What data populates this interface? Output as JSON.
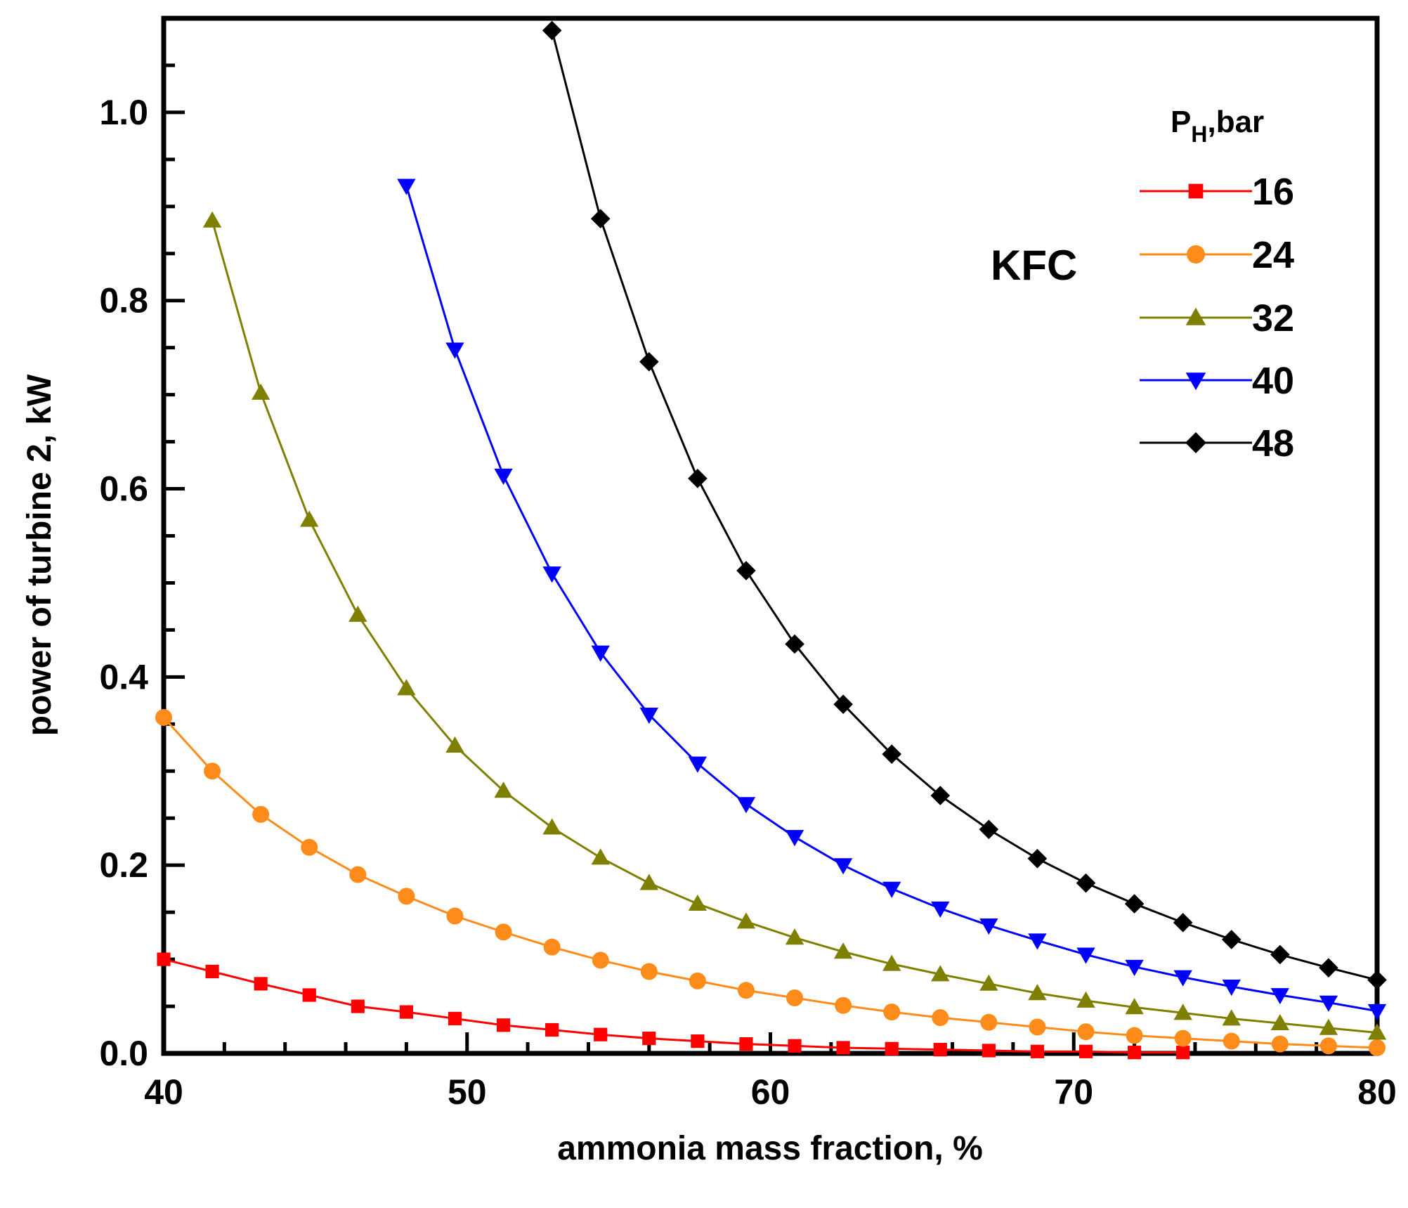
{
  "chart_data": {
    "type": "line",
    "title": "",
    "xlabel": "ammonia mass fraction, %",
    "ylabel": "power of turbine 2, kW",
    "xlim": [
      40,
      80
    ],
    "ylim": [
      0.0,
      1.1
    ],
    "xticks": [
      40,
      50,
      60,
      70,
      80
    ],
    "xtick_labels": [
      "40",
      "50",
      "60",
      "70",
      "80"
    ],
    "yticks": [
      0.0,
      0.2,
      0.4,
      0.6,
      0.8,
      1.0
    ],
    "ytick_labels": [
      "0.0",
      "0.2",
      "0.4",
      "0.6",
      "0.8",
      "1.0"
    ],
    "annotation": "KFC",
    "legend": {
      "title_main": "P",
      "title_sub": "H",
      "title_rest": ",bar",
      "placement": "top-right"
    },
    "series": [
      {
        "name": "16",
        "color": "#ff0000",
        "marker": "square",
        "x": [
          40,
          41.6,
          43.2,
          44.8,
          46.4,
          48,
          49.6,
          51.2,
          52.8,
          54.4,
          56,
          57.6,
          59.2,
          60.8,
          62.4,
          64,
          65.6,
          67.2,
          68.8,
          70.4,
          72,
          73.6
        ],
        "y": [
          0.1,
          0.087,
          0.074,
          0.062,
          0.05,
          0.044,
          0.037,
          0.03,
          0.025,
          0.02,
          0.016,
          0.013,
          0.01,
          0.008,
          0.006,
          0.005,
          0.004,
          0.003,
          0.002,
          0.002,
          0.001,
          0.001
        ]
      },
      {
        "name": "24",
        "color": "#ff8c1a",
        "marker": "circle",
        "x": [
          40,
          41.6,
          43.2,
          44.8,
          46.4,
          48,
          49.6,
          51.2,
          52.8,
          54.4,
          56,
          57.6,
          59.2,
          60.8,
          62.4,
          64,
          65.6,
          67.2,
          68.8,
          70.4,
          72,
          73.6,
          75.2,
          76.8,
          78.4,
          80
        ],
        "y": [
          0.357,
          0.3,
          0.254,
          0.219,
          0.19,
          0.167,
          0.146,
          0.129,
          0.113,
          0.099,
          0.087,
          0.077,
          0.067,
          0.059,
          0.051,
          0.044,
          0.038,
          0.033,
          0.028,
          0.023,
          0.019,
          0.016,
          0.013,
          0.01,
          0.008,
          0.006
        ]
      },
      {
        "name": "32",
        "color": "#808000",
        "marker": "triangle-up",
        "x": [
          41.6,
          43.2,
          44.8,
          46.4,
          48,
          49.6,
          51.2,
          52.8,
          54.4,
          56,
          57.6,
          59.2,
          60.8,
          62.4,
          64,
          65.6,
          67.2,
          68.8,
          70.4,
          72,
          73.6,
          75.2,
          76.8,
          78.4,
          80
        ],
        "y": [
          0.885,
          0.702,
          0.567,
          0.466,
          0.388,
          0.327,
          0.279,
          0.24,
          0.208,
          0.181,
          0.159,
          0.14,
          0.123,
          0.108,
          0.095,
          0.084,
          0.074,
          0.064,
          0.056,
          0.049,
          0.043,
          0.037,
          0.032,
          0.027,
          0.022
        ]
      },
      {
        "name": "40",
        "color": "#0000ff",
        "marker": "triangle-down",
        "x": [
          48,
          49.6,
          51.2,
          52.8,
          54.4,
          56,
          57.6,
          59.2,
          60.8,
          62.4,
          64,
          65.6,
          67.2,
          68.8,
          70.4,
          72,
          73.6,
          75.2,
          76.8,
          78.4,
          80
        ],
        "y": [
          0.922,
          0.748,
          0.614,
          0.51,
          0.426,
          0.36,
          0.308,
          0.265,
          0.23,
          0.2,
          0.175,
          0.154,
          0.136,
          0.12,
          0.105,
          0.092,
          0.081,
          0.071,
          0.062,
          0.054,
          0.045
        ]
      },
      {
        "name": "48",
        "color": "#000000",
        "marker": "diamond",
        "x": [
          52.8,
          54.4,
          56,
          57.6,
          59.2,
          60.8,
          62.4,
          64,
          65.6,
          67.2,
          68.8,
          70.4,
          72,
          73.6,
          75.2,
          76.8,
          78.4,
          80
        ],
        "y": [
          1.087,
          0.887,
          0.735,
          0.611,
          0.513,
          0.435,
          0.371,
          0.318,
          0.274,
          0.238,
          0.207,
          0.181,
          0.159,
          0.139,
          0.121,
          0.105,
          0.091,
          0.078
        ]
      }
    ]
  }
}
